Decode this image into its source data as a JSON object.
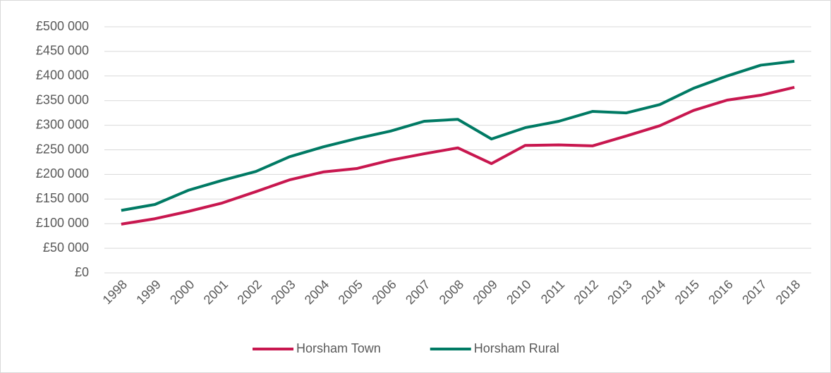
{
  "chart_data": {
    "type": "line",
    "categories": [
      "1998",
      "1999",
      "2000",
      "2001",
      "2002",
      "2003",
      "2004",
      "2005",
      "2006",
      "2007",
      "2008",
      "2009",
      "2010",
      "2011",
      "2012",
      "2013",
      "2014",
      "2015",
      "2016",
      "2017",
      "2018"
    ],
    "series": [
      {
        "name": "Horsham Town",
        "color": "#c8174f",
        "values": [
          99000,
          110000,
          125000,
          142000,
          165000,
          189000,
          205000,
          212000,
          229000,
          242000,
          254000,
          222000,
          259000,
          260000,
          258000,
          278000,
          299000,
          330000,
          351000,
          361000,
          377000
        ]
      },
      {
        "name": "Horsham Rural",
        "color": "#007a64",
        "values": [
          127000,
          139000,
          168000,
          188000,
          206000,
          236000,
          256000,
          273000,
          288000,
          308000,
          312000,
          272000,
          295000,
          308000,
          328000,
          325000,
          342000,
          375000,
          400000,
          422000,
          430000
        ]
      }
    ],
    "ylim": [
      0,
      500000
    ],
    "yticks": [
      {
        "value": 0,
        "label": "£0"
      },
      {
        "value": 50000,
        "label": "£50 000"
      },
      {
        "value": 100000,
        "label": "£100 000"
      },
      {
        "value": 150000,
        "label": "£150 000"
      },
      {
        "value": 200000,
        "label": "£200 000"
      },
      {
        "value": 250000,
        "label": "£250 000"
      },
      {
        "value": 300000,
        "label": "£300 000"
      },
      {
        "value": 350000,
        "label": "£350 000"
      },
      {
        "value": 400000,
        "label": "£400 000"
      },
      {
        "value": 450000,
        "label": "£450 000"
      },
      {
        "value": 500000,
        "label": "£500 000"
      }
    ],
    "grid": true,
    "legend": "bottom"
  }
}
